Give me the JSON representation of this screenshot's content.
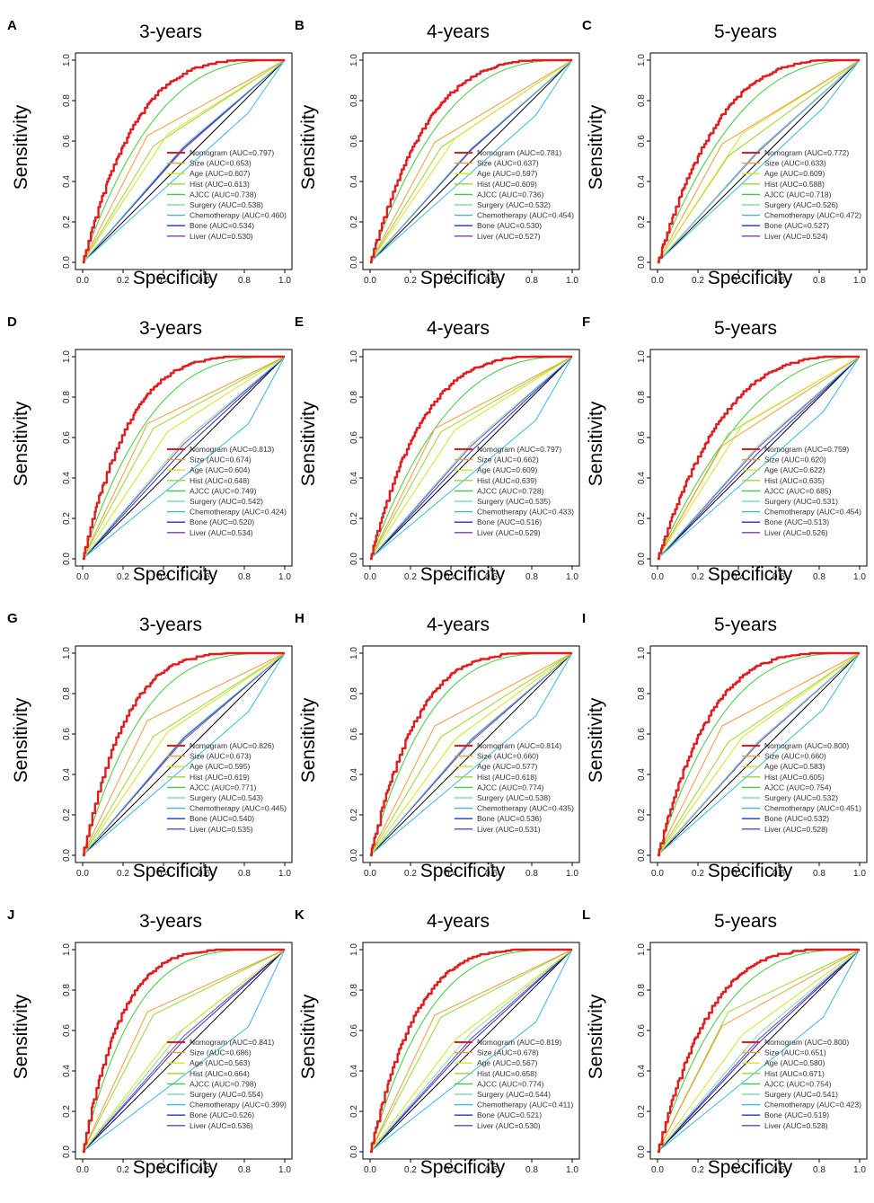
{
  "figure": {
    "axis_labels": {
      "x": "Specificity",
      "y": "Sensitivity"
    },
    "colors": {
      "Nomogram": "#e41a1c",
      "Size": "#f29a3a",
      "Age": "#d8e41f",
      "Hist": "#9ad82c",
      "AJCC": "#3ccf3c",
      "Surgery": "#7fe0b0",
      "Chemotherapy": "#3cb7e8",
      "Bone": "#1f2fcc",
      "Liver": "#7a3fb5",
      "reference": "#000000"
    }
  },
  "chart_data": [
    {
      "type": "line",
      "panel": "A",
      "title": "3-years",
      "xlabel": "Specificity",
      "ylabel": "Sensitivity",
      "xlim": [
        0,
        1
      ],
      "ylim": [
        0,
        1
      ],
      "x_ticks": [
        "0.0",
        "0.2",
        "0.4",
        "0.6",
        "0.8",
        "1.0"
      ],
      "y_ticks": [
        "0.0",
        "0.2",
        "0.4",
        "0.6",
        "0.8",
        "1.0"
      ],
      "series": [
        {
          "name": "Nomogram",
          "auc": "0.797"
        },
        {
          "name": "Size",
          "auc": "0.653"
        },
        {
          "name": "Age",
          "auc": "0.607"
        },
        {
          "name": "Hist",
          "auc": "0.613"
        },
        {
          "name": "AJCC",
          "auc": "0.738"
        },
        {
          "name": "Surgery",
          "auc": "0.538"
        },
        {
          "name": "Chemotherapy",
          "auc": "0.460"
        },
        {
          "name": "Bone",
          "auc": "0.534"
        },
        {
          "name": "Liver",
          "auc": "0.530"
        }
      ]
    },
    {
      "type": "line",
      "panel": "B",
      "title": "4-years",
      "xlabel": "Specificity",
      "ylabel": "Sensitivity",
      "xlim": [
        0,
        1
      ],
      "ylim": [
        0,
        1
      ],
      "x_ticks": [
        "0.0",
        "0.2",
        "0.4",
        "0.6",
        "0.8",
        "1.0"
      ],
      "y_ticks": [
        "0.0",
        "0.2",
        "0.4",
        "0.6",
        "0.8",
        "1.0"
      ],
      "series": [
        {
          "name": "Nomogram",
          "auc": "0.781"
        },
        {
          "name": "Size",
          "auc": "0.637"
        },
        {
          "name": "Age",
          "auc": "0.597"
        },
        {
          "name": "Hist",
          "auc": "0.609"
        },
        {
          "name": "AJCC",
          "auc": "0.736"
        },
        {
          "name": "Surgery",
          "auc": "0.532"
        },
        {
          "name": "Chemotherapy",
          "auc": "0.454"
        },
        {
          "name": "Bone",
          "auc": "0.530"
        },
        {
          "name": "Liver",
          "auc": "0.527"
        }
      ]
    },
    {
      "type": "line",
      "panel": "C",
      "title": "5-years",
      "xlabel": "Specificity",
      "ylabel": "Sensitivity",
      "xlim": [
        0,
        1
      ],
      "ylim": [
        0,
        1
      ],
      "x_ticks": [
        "0.0",
        "0.2",
        "0.4",
        "0.6",
        "0.8",
        "1.0"
      ],
      "y_ticks": [
        "0.0",
        "0.2",
        "0.4",
        "0.6",
        "0.8",
        "1.0"
      ],
      "series": [
        {
          "name": "Nomogram",
          "auc": "0.772"
        },
        {
          "name": "Size",
          "auc": "0.633"
        },
        {
          "name": "Age",
          "auc": "0.609"
        },
        {
          "name": "Hist",
          "auc": "0.588"
        },
        {
          "name": "AJCC",
          "auc": "0.718"
        },
        {
          "name": "Surgery",
          "auc": "0.526"
        },
        {
          "name": "Chemotherapy",
          "auc": "0.472"
        },
        {
          "name": "Bone",
          "auc": "0.527"
        },
        {
          "name": "Liver",
          "auc": "0.524"
        }
      ]
    },
    {
      "type": "line",
      "panel": "D",
      "title": "3-years",
      "xlabel": "Specificity",
      "ylabel": "Sensitivity",
      "xlim": [
        0,
        1
      ],
      "ylim": [
        0,
        1
      ],
      "x_ticks": [
        "0.0",
        "0.2",
        "0.4",
        "0.6",
        "0.8",
        "1.0"
      ],
      "y_ticks": [
        "0.0",
        "0.2",
        "0.4",
        "0.6",
        "0.8",
        "1.0"
      ],
      "series": [
        {
          "name": "Nomogram",
          "auc": "0.813"
        },
        {
          "name": "Size",
          "auc": "0.674"
        },
        {
          "name": "Age",
          "auc": "0.604"
        },
        {
          "name": "Hist",
          "auc": "0.648"
        },
        {
          "name": "AJCC",
          "auc": "0.749"
        },
        {
          "name": "Surgery",
          "auc": "0.542"
        },
        {
          "name": "Chemotherapy",
          "auc": "0.424"
        },
        {
          "name": "Bone",
          "auc": "0.520"
        },
        {
          "name": "Liver",
          "auc": "0.534"
        }
      ]
    },
    {
      "type": "line",
      "panel": "E",
      "title": "4-years",
      "xlabel": "Specificity",
      "ylabel": "Sensitivity",
      "xlim": [
        0,
        1
      ],
      "ylim": [
        0,
        1
      ],
      "x_ticks": [
        "0.0",
        "0.2",
        "0.4",
        "0.6",
        "0.8",
        "1.0"
      ],
      "y_ticks": [
        "0.0",
        "0.2",
        "0.4",
        "0.6",
        "0.8",
        "1.0"
      ],
      "series": [
        {
          "name": "Nomogram",
          "auc": "0.797"
        },
        {
          "name": "Size",
          "auc": "0.662"
        },
        {
          "name": "Age",
          "auc": "0.609"
        },
        {
          "name": "Hist",
          "auc": "0.639"
        },
        {
          "name": "AJCC",
          "auc": "0.728"
        },
        {
          "name": "Surgery",
          "auc": "0.535"
        },
        {
          "name": "Chemotherapy",
          "auc": "0.433"
        },
        {
          "name": "Bone",
          "auc": "0.516"
        },
        {
          "name": "Liver",
          "auc": "0.529"
        }
      ]
    },
    {
      "type": "line",
      "panel": "F",
      "title": "5-years",
      "xlabel": "Specificity",
      "ylabel": "Sensitivity",
      "xlim": [
        0,
        1
      ],
      "ylim": [
        0,
        1
      ],
      "x_ticks": [
        "0.0",
        "0.2",
        "0.4",
        "0.6",
        "0.8",
        "1.0"
      ],
      "y_ticks": [
        "0.0",
        "0.2",
        "0.4",
        "0.6",
        "0.8",
        "1.0"
      ],
      "series": [
        {
          "name": "Nomogram",
          "auc": "0.759"
        },
        {
          "name": "Size",
          "auc": "0.620"
        },
        {
          "name": "Age",
          "auc": "0.622"
        },
        {
          "name": "Hist",
          "auc": "0.635"
        },
        {
          "name": "AJCC",
          "auc": "0.685"
        },
        {
          "name": "Surgery",
          "auc": "0.531"
        },
        {
          "name": "Chemotherapy",
          "auc": "0.454"
        },
        {
          "name": "Bone",
          "auc": "0.513"
        },
        {
          "name": "Liver",
          "auc": "0.526"
        }
      ]
    },
    {
      "type": "line",
      "panel": "G",
      "title": "3-years",
      "xlabel": "Specificity",
      "ylabel": "Sensitivity",
      "xlim": [
        0,
        1
      ],
      "ylim": [
        0,
        1
      ],
      "x_ticks": [
        "0.0",
        "0.2",
        "0.4",
        "0.6",
        "0.8",
        "1.0"
      ],
      "y_ticks": [
        "0.0",
        "0.2",
        "0.4",
        "0.6",
        "0.8",
        "1.0"
      ],
      "series": [
        {
          "name": "Nomogram",
          "auc": "0.826"
        },
        {
          "name": "Size",
          "auc": "0.673"
        },
        {
          "name": "Age",
          "auc": "0.595"
        },
        {
          "name": "Hist",
          "auc": "0.619"
        },
        {
          "name": "AJCC",
          "auc": "0.771"
        },
        {
          "name": "Surgery",
          "auc": "0.543"
        },
        {
          "name": "Chemotherapy",
          "auc": "0.445"
        },
        {
          "name": "Bone",
          "auc": "0.540"
        },
        {
          "name": "Liver",
          "auc": "0.535"
        }
      ]
    },
    {
      "type": "line",
      "panel": "H",
      "title": "4-years",
      "xlabel": "Specificity",
      "ylabel": "Sensitivity",
      "xlim": [
        0,
        1
      ],
      "ylim": [
        0,
        1
      ],
      "x_ticks": [
        "0.0",
        "0.2",
        "0.4",
        "0.6",
        "0.8",
        "1.0"
      ],
      "y_ticks": [
        "0.0",
        "0.2",
        "0.4",
        "0.6",
        "0.8",
        "1.0"
      ],
      "series": [
        {
          "name": "Nomogram",
          "auc": "0.814"
        },
        {
          "name": "Size",
          "auc": "0.660"
        },
        {
          "name": "Age",
          "auc": "0.577"
        },
        {
          "name": "Hist",
          "auc": "0.618"
        },
        {
          "name": "AJCC",
          "auc": "0.774"
        },
        {
          "name": "Surgery",
          "auc": "0.538"
        },
        {
          "name": "Chemotherapy",
          "auc": "0.435"
        },
        {
          "name": "Bone",
          "auc": "0.536"
        },
        {
          "name": "Liver",
          "auc": "0.531"
        }
      ]
    },
    {
      "type": "line",
      "panel": "I",
      "title": "5-years",
      "xlabel": "Specificity",
      "ylabel": "Sensitivity",
      "xlim": [
        0,
        1
      ],
      "ylim": [
        0,
        1
      ],
      "x_ticks": [
        "0.0",
        "0.2",
        "0.4",
        "0.6",
        "0.8",
        "1.0"
      ],
      "y_ticks": [
        "0.0",
        "0.2",
        "0.4",
        "0.6",
        "0.8",
        "1.0"
      ],
      "series": [
        {
          "name": "Nomogram",
          "auc": "0.800"
        },
        {
          "name": "Size",
          "auc": "0.660"
        },
        {
          "name": "Age",
          "auc": "0.583"
        },
        {
          "name": "Hist",
          "auc": "0.605"
        },
        {
          "name": "AJCC",
          "auc": "0.754"
        },
        {
          "name": "Surgery",
          "auc": "0.532"
        },
        {
          "name": "Chemotherapy",
          "auc": "0.451"
        },
        {
          "name": "Bone",
          "auc": "0.532"
        },
        {
          "name": "Liver",
          "auc": "0.528"
        }
      ]
    },
    {
      "type": "line",
      "panel": "J",
      "title": "3-years",
      "xlabel": "Specificity",
      "ylabel": "Sensitivity",
      "xlim": [
        0,
        1
      ],
      "ylim": [
        0,
        1
      ],
      "x_ticks": [
        "0.0",
        "0.2",
        "0.4",
        "0.6",
        "0.8",
        "1.0"
      ],
      "y_ticks": [
        "0.0",
        "0.2",
        "0.4",
        "0.6",
        "0.8",
        "1.0"
      ],
      "series": [
        {
          "name": "Nomogram",
          "auc": "0.841"
        },
        {
          "name": "Size",
          "auc": "0.686"
        },
        {
          "name": "Age",
          "auc": "0.563"
        },
        {
          "name": "Hist",
          "auc": "0.664"
        },
        {
          "name": "AJCC",
          "auc": "0.798"
        },
        {
          "name": "Surgery",
          "auc": "0.554"
        },
        {
          "name": "Chemotherapy",
          "auc": "0.399"
        },
        {
          "name": "Bone",
          "auc": "0.526"
        },
        {
          "name": "Liver",
          "auc": "0.536"
        }
      ]
    },
    {
      "type": "line",
      "panel": "K",
      "title": "4-years",
      "xlabel": "Specificity",
      "ylabel": "Sensitivity",
      "xlim": [
        0,
        1
      ],
      "ylim": [
        0,
        1
      ],
      "x_ticks": [
        "0.0",
        "0.2",
        "0.4",
        "0.6",
        "0.8",
        "1.0"
      ],
      "y_ticks": [
        "0.0",
        "0.2",
        "0.4",
        "0.6",
        "0.8",
        "1.0"
      ],
      "series": [
        {
          "name": "Nomogram",
          "auc": "0.819"
        },
        {
          "name": "Size",
          "auc": "0.678"
        },
        {
          "name": "Age",
          "auc": "0.567"
        },
        {
          "name": "Hist",
          "auc": "0.658"
        },
        {
          "name": "AJCC",
          "auc": "0.774"
        },
        {
          "name": "Surgery",
          "auc": "0.544"
        },
        {
          "name": "Chemotherapy",
          "auc": "0.411"
        },
        {
          "name": "Bone",
          "auc": "0.521"
        },
        {
          "name": "Liver",
          "auc": "0.530"
        }
      ]
    },
    {
      "type": "line",
      "panel": "L",
      "title": "5-years",
      "xlabel": "Specificity",
      "ylabel": "Sensitivity",
      "xlim": [
        0,
        1
      ],
      "ylim": [
        0,
        1
      ],
      "x_ticks": [
        "0.0",
        "0.2",
        "0.4",
        "0.6",
        "0.8",
        "1.0"
      ],
      "y_ticks": [
        "0.0",
        "0.2",
        "0.4",
        "0.6",
        "0.8",
        "1.0"
      ],
      "series": [
        {
          "name": "Nomogram",
          "auc": "0.800"
        },
        {
          "name": "Size",
          "auc": "0.651"
        },
        {
          "name": "Age",
          "auc": "0.580"
        },
        {
          "name": "Hist",
          "auc": "0.671"
        },
        {
          "name": "AJCC",
          "auc": "0.754"
        },
        {
          "name": "Surgery",
          "auc": "0.541"
        },
        {
          "name": "Chemotherapy",
          "auc": "0.423"
        },
        {
          "name": "Bone",
          "auc": "0.519"
        },
        {
          "name": "Liver",
          "auc": "0.528"
        }
      ]
    }
  ]
}
